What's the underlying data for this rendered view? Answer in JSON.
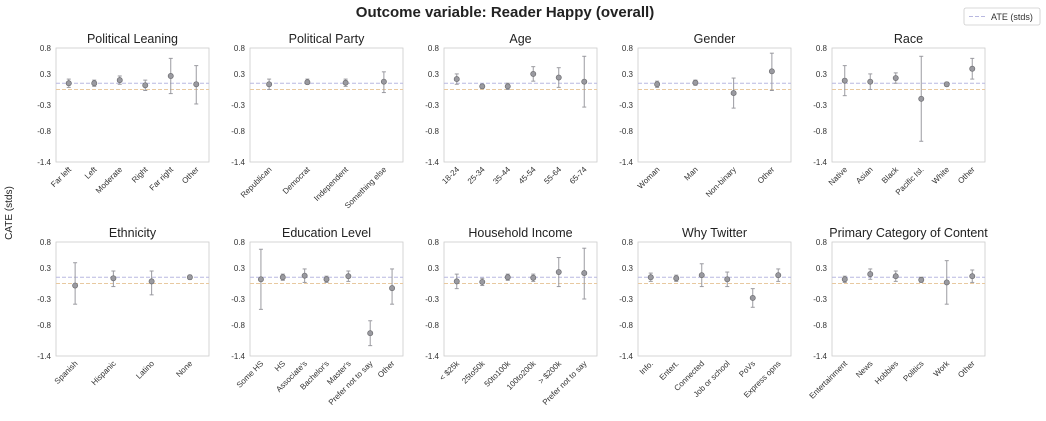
{
  "title": "Outcome variable: Reader Happy (overall)",
  "ylabel": "CATE (stds)",
  "legend": {
    "label": "ATE (stds)"
  },
  "colors": {
    "marker": "#9a9aa0",
    "marker_edge": "#6e6e72",
    "errorbar": "#9a9aa0",
    "ate_line": "#b8b8e0",
    "zero_line": "#e8c9a0",
    "frame": "#cccccc"
  },
  "chart_data": {
    "type": "scatter",
    "yticks": [
      "0.8",
      "0.3",
      "-0.3",
      "-0.8",
      "-1.4"
    ],
    "ylim": [
      -1.4,
      0.8
    ],
    "ate": 0.12,
    "zero": 0.0,
    "panels": [
      {
        "title": "Political Leaning",
        "categories": [
          "Far left",
          "Left",
          "Moderate",
          "Right",
          "Far right",
          "Other"
        ],
        "values": [
          0.12,
          0.12,
          0.18,
          0.08,
          0.26,
          0.1
        ],
        "lower": [
          0.04,
          0.06,
          0.1,
          -0.02,
          -0.08,
          -0.28
        ],
        "upper": [
          0.2,
          0.18,
          0.26,
          0.18,
          0.6,
          0.46
        ]
      },
      {
        "title": "Political Party",
        "categories": [
          "Republican",
          "Democrat",
          "Independent",
          "Something else"
        ],
        "values": [
          0.1,
          0.14,
          0.13,
          0.15
        ],
        "lower": [
          0.0,
          0.1,
          0.06,
          -0.06
        ],
        "upper": [
          0.2,
          0.2,
          0.2,
          0.34
        ]
      },
      {
        "title": "Age",
        "categories": [
          "18-24",
          "25-34",
          "35-44",
          "45-54",
          "55-64",
          "65-74"
        ],
        "values": [
          0.2,
          0.06,
          0.06,
          0.3,
          0.23,
          0.15
        ],
        "lower": [
          0.1,
          0.02,
          0.0,
          0.16,
          0.04,
          -0.34
        ],
        "upper": [
          0.3,
          0.1,
          0.12,
          0.44,
          0.42,
          0.64
        ]
      },
      {
        "title": "Gender",
        "categories": [
          "Woman",
          "Man",
          "Non-binary",
          "Other"
        ],
        "values": [
          0.1,
          0.13,
          -0.07,
          0.35
        ],
        "lower": [
          0.04,
          0.08,
          -0.36,
          -0.02
        ],
        "upper": [
          0.16,
          0.18,
          0.22,
          0.7
        ]
      },
      {
        "title": "Race",
        "categories": [
          "Native",
          "Asian",
          "Black",
          "Pacific Isl.",
          "White",
          "Other"
        ],
        "values": [
          0.17,
          0.15,
          0.22,
          -0.18,
          0.1,
          0.4
        ],
        "lower": [
          -0.12,
          0.0,
          0.12,
          -1.0,
          0.06,
          0.2
        ],
        "upper": [
          0.46,
          0.3,
          0.32,
          0.64,
          0.14,
          0.6
        ]
      },
      {
        "title": "Ethnicity",
        "categories": [
          "Spanish",
          "Hispanic",
          "Latino",
          "None"
        ],
        "values": [
          -0.04,
          0.1,
          0.04,
          0.12
        ],
        "lower": [
          -0.4,
          -0.06,
          -0.22,
          0.08
        ],
        "upper": [
          0.4,
          0.24,
          0.24,
          0.16
        ]
      },
      {
        "title": "Education Level",
        "categories": [
          "Some HS",
          "HS",
          "Associate's",
          "Bachelor's",
          "Master's",
          "Prefer not to say",
          "Other"
        ],
        "values": [
          0.08,
          0.12,
          0.15,
          0.08,
          0.14,
          -0.96,
          -0.09
        ],
        "lower": [
          -0.5,
          0.06,
          0.02,
          0.02,
          0.04,
          -1.2,
          -0.4
        ],
        "upper": [
          0.66,
          0.18,
          0.28,
          0.14,
          0.24,
          -0.72,
          0.28
        ]
      },
      {
        "title": "Household Income",
        "categories": [
          "< $25k",
          "25to50k",
          "50to100k",
          "100to200k",
          "> $200k",
          "Prefer not to say"
        ],
        "values": [
          0.04,
          0.03,
          0.12,
          0.11,
          0.22,
          0.2
        ],
        "lower": [
          -0.1,
          -0.04,
          0.06,
          0.04,
          -0.06,
          -0.3
        ],
        "upper": [
          0.18,
          0.1,
          0.18,
          0.18,
          0.5,
          0.68
        ]
      },
      {
        "title": "Why Twitter",
        "categories": [
          "Info.",
          "Entert.",
          "Connected",
          "Job or school",
          "PoVs",
          "Express opns"
        ],
        "values": [
          0.12,
          0.1,
          0.16,
          0.08,
          -0.28,
          0.16
        ],
        "lower": [
          0.04,
          0.04,
          -0.06,
          -0.06,
          -0.46,
          0.04
        ],
        "upper": [
          0.2,
          0.16,
          0.38,
          0.22,
          -0.1,
          0.28
        ]
      },
      {
        "title": "Primary Category of Content",
        "categories": [
          "Entertainment",
          "News",
          "Hobbies",
          "Politics",
          "Work",
          "Other"
        ],
        "values": [
          0.08,
          0.18,
          0.14,
          0.07,
          0.02,
          0.14
        ],
        "lower": [
          0.02,
          0.08,
          0.04,
          0.02,
          -0.4,
          0.02
        ],
        "upper": [
          0.14,
          0.28,
          0.24,
          0.12,
          0.44,
          0.26
        ]
      }
    ]
  }
}
